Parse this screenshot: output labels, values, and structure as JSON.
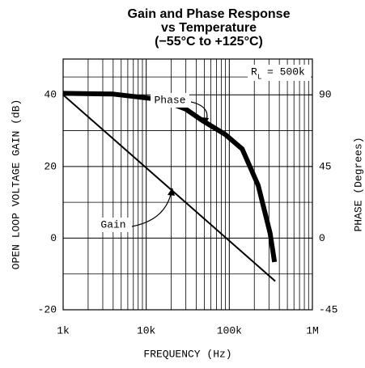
{
  "chart_data": {
    "type": "line",
    "title": [
      "Gain and Phase Response",
      "vs Temperature",
      "(−55°C to +125°C)"
    ],
    "ylabel": "OPEN LOOP VOLTAGE GAIN (dB)",
    "y2label": "PHASE (Degrees)",
    "xlabel": "FREQUENCY (Hz)",
    "xscale": "log",
    "xlim": [
      1000,
      1000000
    ],
    "xticks": [
      {
        "value": 1000,
        "label": "1k"
      },
      {
        "value": 10000,
        "label": "10k"
      },
      {
        "value": 100000,
        "label": "100k"
      },
      {
        "value": 1000000,
        "label": "1M"
      }
    ],
    "ylim": [
      -20,
      50
    ],
    "yticks": [
      -20,
      0,
      20,
      40
    ],
    "y2lim": [
      -45,
      112.5
    ],
    "y2ticks": [
      -45,
      0,
      45,
      90
    ],
    "grid": true,
    "series": [
      {
        "name": "Gain",
        "color": "#000000",
        "x": [
          1000,
          357000
        ],
        "values": [
          40,
          -12
        ]
      },
      {
        "name": "Phase",
        "color": "#000000",
        "axis": "y2",
        "x": [
          1000,
          4000,
          15000,
          30000,
          47000,
          90000,
          143000,
          223000,
          310000,
          350000
        ],
        "values": [
          91,
          90.5,
          87,
          81,
          74,
          65,
          56,
          33,
          3,
          -15
        ]
      }
    ],
    "rl_label": [
      "R",
      "L",
      "= 500k"
    ]
  }
}
